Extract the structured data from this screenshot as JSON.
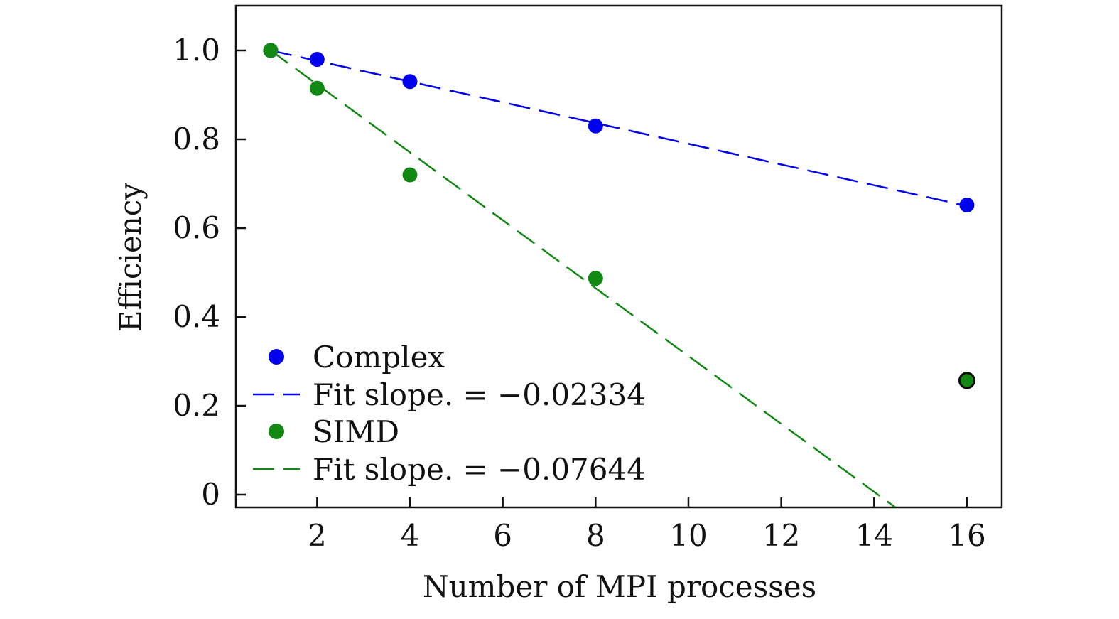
{
  "chart_data": {
    "type": "scatter",
    "xlabel": "Number of MPI processes",
    "ylabel": "Efficiency",
    "xlim": [
      0.2,
      16.7
    ],
    "ylim": [
      -0.03,
      1.1
    ],
    "xticks": [
      2,
      4,
      6,
      8,
      10,
      12,
      14,
      16
    ],
    "xtick_labels": [
      "2",
      "4",
      "6",
      "8",
      "10",
      "12",
      "14",
      "16"
    ],
    "yticks": [
      0,
      0.2,
      0.4,
      0.6,
      0.8,
      1.0
    ],
    "ytick_labels": [
      "0",
      "0.2",
      "0.4",
      "0.6",
      "0.8",
      "1.0"
    ],
    "grid": false,
    "legend_position": "bottom-left",
    "series": [
      {
        "name": "Complex",
        "kind": "points",
        "color": "#0000ee",
        "x": [
          1,
          2,
          4,
          8,
          16
        ],
        "y": [
          1.0,
          0.98,
          0.93,
          0.83,
          0.652
        ]
      },
      {
        "name": "Fit slope. = −0.02334",
        "kind": "fit",
        "color": "#0000ee",
        "slope": -0.02334,
        "x": [
          1,
          16
        ]
      },
      {
        "name": "SIMD",
        "kind": "points",
        "color": "#118811",
        "x": [
          1,
          2,
          4,
          8,
          16
        ],
        "y": [
          1.0,
          0.915,
          0.72,
          0.487,
          0.257
        ]
      },
      {
        "name": "Fit slope. = −0.07644",
        "kind": "fit",
        "color": "#118811",
        "slope": -0.07644,
        "x": [
          1,
          14.8
        ]
      }
    ]
  }
}
